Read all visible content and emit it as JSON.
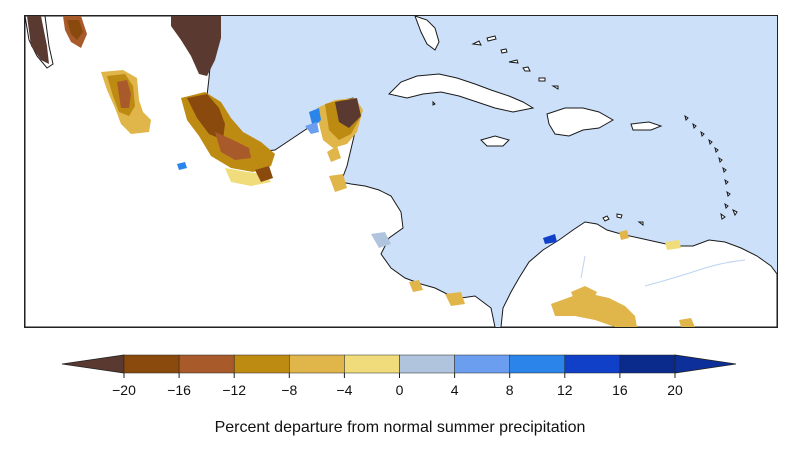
{
  "map": {
    "colors": {
      "ocean": "#cce0fa",
      "land": "#ffffff",
      "coast": "#1a1a1a"
    }
  },
  "legend": {
    "ticks": [
      "−20",
      "−16",
      "−12",
      "−8",
      "−4",
      "0",
      "4",
      "8",
      "12",
      "16",
      "20"
    ],
    "bins": [
      {
        "range": "< -20",
        "color": "#5a3a30"
      },
      {
        "range": "-20 to -16",
        "color": "#8a4a0e"
      },
      {
        "range": "-16 to -12",
        "color": "#a85a2b"
      },
      {
        "range": "-12 to -8",
        "color": "#bd8a12"
      },
      {
        "range": "-8 to -4",
        "color": "#e0b54a"
      },
      {
        "range": "-4 to 0",
        "color": "#f0dc7a"
      },
      {
        "range": "0 to 4",
        "color": "#b0c4de"
      },
      {
        "range": "4 to 8",
        "color": "#6c9ef0"
      },
      {
        "range": "8 to 12",
        "color": "#2b84ea"
      },
      {
        "range": "12 to 16",
        "color": "#1040c8"
      },
      {
        "range": "16 to 20",
        "color": "#0a2a8c"
      },
      {
        "range": "> 20",
        "color": "#0d2f9a"
      }
    ],
    "caption": "Percent departure from normal summer precipitation"
  }
}
